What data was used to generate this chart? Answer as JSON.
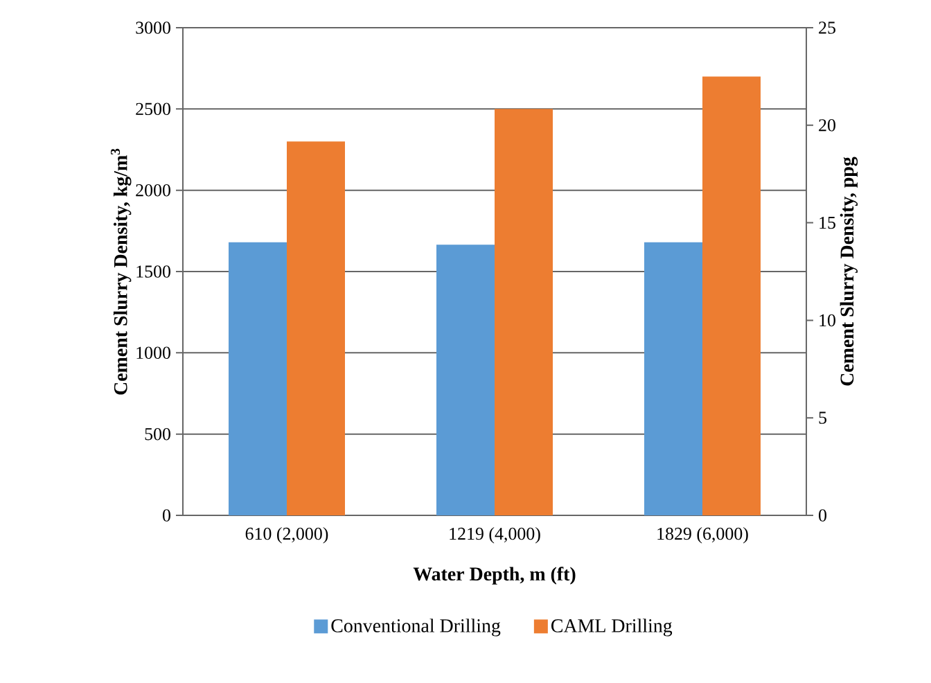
{
  "chart_data": {
    "type": "bar",
    "xlabel": "Water Depth, m (ft)",
    "ylabel": "Cement Slurry Density, kg/m$^{3}$",
    "y2label": "Cement Slurry Density, ppg",
    "categories": [
      "610 (2,000)",
      "1219 (4,000)",
      "1829 (6,000)"
    ],
    "series": [
      {
        "name": "Conventional Drilling",
        "color": "#5b9bd5",
        "values": [
          1680,
          1665,
          1680
        ]
      },
      {
        "name": "CAML Drilling",
        "color": "#ed7d31",
        "values": [
          2300,
          2500,
          2700
        ]
      }
    ],
    "ylim": [
      0,
      3000
    ],
    "yticks": [
      0,
      500,
      1000,
      1500,
      2000,
      2500,
      3000
    ],
    "y2lim": [
      0,
      25
    ],
    "y2ticks": [
      0,
      5,
      10,
      15,
      20,
      25
    ],
    "grid": "y",
    "legend": "bottom"
  }
}
